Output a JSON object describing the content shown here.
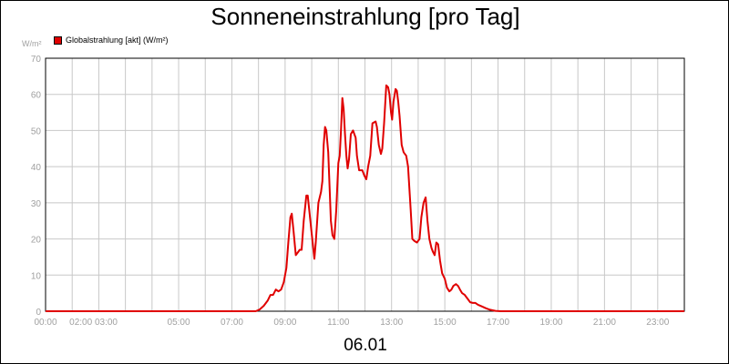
{
  "chart_data": {
    "type": "line",
    "title": "Sonneneinstrahlung [pro Tag]",
    "unit_label": "W/m²",
    "xlabel": "06.01",
    "ylabel": "",
    "ylim": [
      0,
      70
    ],
    "yticks": [
      0,
      10,
      20,
      30,
      40,
      50,
      60,
      70
    ],
    "xlim_hours": [
      0,
      24
    ],
    "xticks": [
      {
        "hour": 0,
        "label": "00:00"
      },
      {
        "hour": 1.8,
        "label": "02:00 03:00"
      },
      {
        "hour": 5,
        "label": "05:00"
      },
      {
        "hour": 7,
        "label": "07:00"
      },
      {
        "hour": 9,
        "label": "09:00"
      },
      {
        "hour": 11,
        "label": "11:00"
      },
      {
        "hour": 13,
        "label": "13:00"
      },
      {
        "hour": 15,
        "label": "15:00"
      },
      {
        "hour": 17,
        "label": "17:00"
      },
      {
        "hour": 19,
        "label": "19:00"
      },
      {
        "hour": 21,
        "label": "21:00"
      },
      {
        "hour": 23,
        "label": "23:00"
      }
    ],
    "grid": true,
    "legend_position": "top-left",
    "series": [
      {
        "name": "Globalstrahlung [akt] (W/m²)",
        "color": "#e00000",
        "points": [
          [
            0.0,
            0
          ],
          [
            7.9,
            0
          ],
          [
            8.05,
            0.5
          ],
          [
            8.2,
            1.5
          ],
          [
            8.35,
            3
          ],
          [
            8.45,
            4.5
          ],
          [
            8.55,
            4.5
          ],
          [
            8.65,
            6
          ],
          [
            8.75,
            5.5
          ],
          [
            8.85,
            6
          ],
          [
            8.95,
            8
          ],
          [
            9.05,
            12
          ],
          [
            9.12,
            19
          ],
          [
            9.2,
            26
          ],
          [
            9.25,
            27
          ],
          [
            9.32,
            22
          ],
          [
            9.4,
            15.5
          ],
          [
            9.5,
            16.5
          ],
          [
            9.55,
            17
          ],
          [
            9.62,
            17
          ],
          [
            9.7,
            25
          ],
          [
            9.8,
            32
          ],
          [
            9.85,
            32
          ],
          [
            9.95,
            25
          ],
          [
            10.05,
            18
          ],
          [
            10.1,
            14.5
          ],
          [
            10.15,
            19
          ],
          [
            10.25,
            30
          ],
          [
            10.35,
            33
          ],
          [
            10.4,
            36
          ],
          [
            10.45,
            46
          ],
          [
            10.5,
            51
          ],
          [
            10.55,
            50
          ],
          [
            10.62,
            44
          ],
          [
            10.68,
            33
          ],
          [
            10.72,
            25
          ],
          [
            10.78,
            21
          ],
          [
            10.85,
            20
          ],
          [
            10.92,
            28
          ],
          [
            11.0,
            41
          ],
          [
            11.05,
            43
          ],
          [
            11.1,
            50
          ],
          [
            11.15,
            59
          ],
          [
            11.2,
            56
          ],
          [
            11.25,
            49
          ],
          [
            11.3,
            43
          ],
          [
            11.35,
            39.5
          ],
          [
            11.4,
            42
          ],
          [
            11.47,
            49
          ],
          [
            11.55,
            50
          ],
          [
            11.65,
            48
          ],
          [
            11.7,
            43
          ],
          [
            11.78,
            39
          ],
          [
            11.9,
            39
          ],
          [
            11.98,
            37.5
          ],
          [
            12.05,
            36.5
          ],
          [
            12.12,
            40
          ],
          [
            12.2,
            43
          ],
          [
            12.28,
            52
          ],
          [
            12.4,
            52.5
          ],
          [
            12.45,
            51
          ],
          [
            12.52,
            46
          ],
          [
            12.6,
            43.5
          ],
          [
            12.65,
            45
          ],
          [
            12.72,
            52
          ],
          [
            12.8,
            62.5
          ],
          [
            12.87,
            62
          ],
          [
            12.92,
            60
          ],
          [
            12.98,
            55
          ],
          [
            13.02,
            53
          ],
          [
            13.07,
            58
          ],
          [
            13.15,
            61.5
          ],
          [
            13.2,
            61
          ],
          [
            13.25,
            58
          ],
          [
            13.3,
            54
          ],
          [
            13.38,
            46
          ],
          [
            13.45,
            44
          ],
          [
            13.55,
            43
          ],
          [
            13.62,
            40
          ],
          [
            13.72,
            28
          ],
          [
            13.78,
            20
          ],
          [
            13.85,
            19.5
          ],
          [
            13.95,
            19
          ],
          [
            14.05,
            20
          ],
          [
            14.12,
            26
          ],
          [
            14.2,
            30
          ],
          [
            14.28,
            31.5
          ],
          [
            14.35,
            25
          ],
          [
            14.42,
            20
          ],
          [
            14.5,
            17.5
          ],
          [
            14.55,
            16.5
          ],
          [
            14.62,
            15.5
          ],
          [
            14.68,
            19
          ],
          [
            14.75,
            18.5
          ],
          [
            14.82,
            14
          ],
          [
            14.9,
            10.5
          ],
          [
            15.0,
            9
          ],
          [
            15.08,
            6.5
          ],
          [
            15.17,
            5.5
          ],
          [
            15.25,
            6
          ],
          [
            15.32,
            7
          ],
          [
            15.42,
            7.5
          ],
          [
            15.5,
            7
          ],
          [
            15.57,
            6
          ],
          [
            15.65,
            5
          ],
          [
            15.75,
            4.5
          ],
          [
            15.85,
            3.5
          ],
          [
            15.95,
            2.5
          ],
          [
            16.05,
            2.3
          ],
          [
            16.15,
            2.3
          ],
          [
            16.25,
            1.8
          ],
          [
            16.4,
            1.3
          ],
          [
            16.55,
            0.8
          ],
          [
            16.7,
            0.4
          ],
          [
            16.9,
            0.1
          ],
          [
            17.1,
            0
          ],
          [
            24.0,
            0
          ]
        ]
      }
    ]
  }
}
